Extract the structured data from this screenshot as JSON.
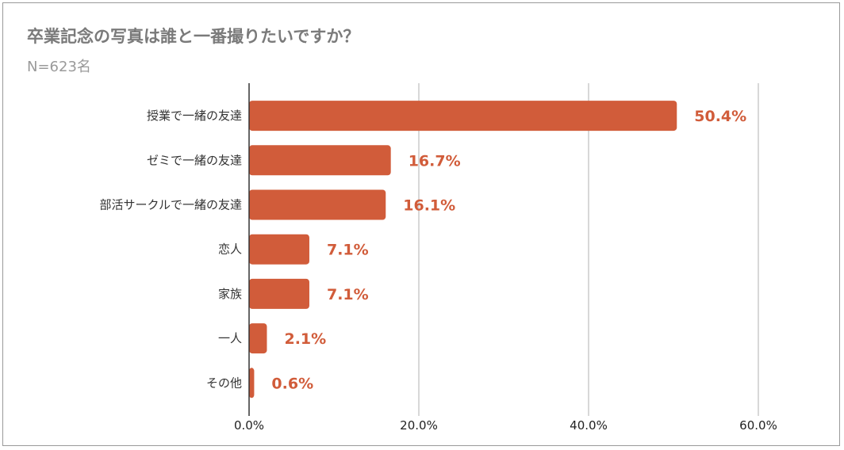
{
  "title": "卒業記念の写真は誰と一番撮りたいですか？",
  "subtitle": "N=623名",
  "colors": {
    "bar": "#d15c3a",
    "value_label": "#d15c3a",
    "grid": "#cccccc",
    "axis": "#333333"
  },
  "chart_data": {
    "type": "bar",
    "orientation": "horizontal",
    "title": "卒業記念の写真は誰と一番撮りたいですか？",
    "subtitle": "N=623名",
    "categories": [
      "授業で一緒の友達",
      "ゼミで一緒の友達",
      "部活サークルで一緒の友達",
      "恋人",
      "家族",
      "一人",
      "その他"
    ],
    "values": [
      50.4,
      16.7,
      16.1,
      7.1,
      7.1,
      2.1,
      0.6
    ],
    "value_labels": [
      "50.4%",
      "16.7%",
      "16.1%",
      "7.1%",
      "7.1%",
      "2.1%",
      "0.6%"
    ],
    "xlim": [
      0,
      60
    ],
    "xticks": [
      0,
      20,
      40,
      60
    ],
    "xtick_labels": [
      "0.0%",
      "20.0%",
      "40.0%",
      "60.0%"
    ],
    "grid": true,
    "legend": "none"
  }
}
